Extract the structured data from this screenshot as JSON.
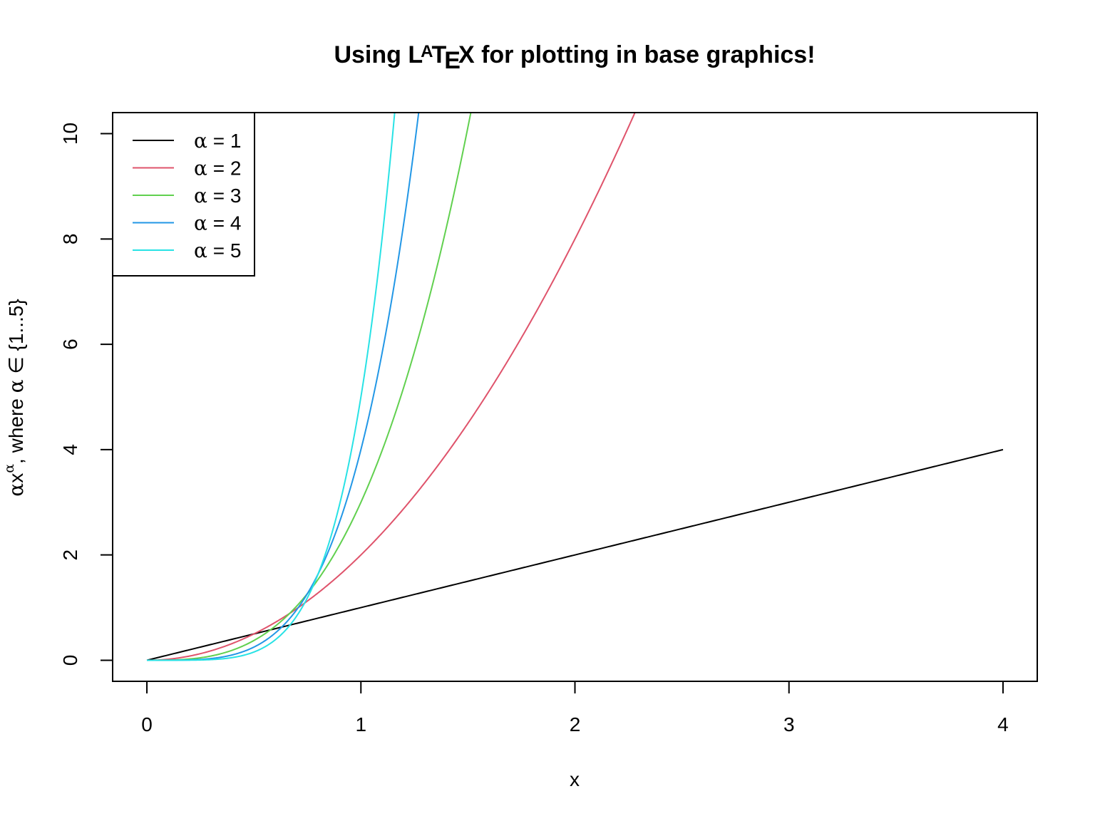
{
  "chart_data": {
    "type": "line",
    "title": {
      "prefix": "Using ",
      "latex_L": "L",
      "latex_A": "A",
      "latex_T": "T",
      "latex_E": "E",
      "latex_X": "X",
      "suffix": " for plotting in base graphics!"
    },
    "xlabel": "x",
    "ylabel": {
      "alpha": "α",
      "x": "x",
      "sup": "α",
      "rest": ", where ",
      "alpha2": "α",
      "elem": " ∈ ",
      "set": "{1...5}"
    },
    "xlim": [
      -0.16,
      4.16
    ],
    "ylim": [
      -0.4,
      10.4
    ],
    "xticks": [
      0,
      1,
      2,
      3,
      4
    ],
    "yticks": [
      0,
      2,
      4,
      6,
      8,
      10
    ],
    "x_range": [
      0,
      4
    ],
    "series": [
      {
        "name": "α = 1",
        "alpha": 1,
        "color": "#000000",
        "formula": "alpha * x^alpha"
      },
      {
        "name": "α = 2",
        "alpha": 2,
        "color": "#DF536B",
        "formula": "alpha * x^alpha"
      },
      {
        "name": "α = 3",
        "alpha": 3,
        "color": "#61D04F",
        "formula": "alpha * x^alpha"
      },
      {
        "name": "α = 4",
        "alpha": 4,
        "color": "#2297E6",
        "formula": "alpha * x^alpha"
      },
      {
        "name": "α = 5",
        "alpha": 5,
        "color": "#28E2E5",
        "formula": "alpha * x^alpha"
      }
    ],
    "legend": {
      "position": "top-left",
      "entries": [
        {
          "symbol": "α",
          "eq": " = 1"
        },
        {
          "symbol": "α",
          "eq": " = 2"
        },
        {
          "symbol": "α",
          "eq": " = 3"
        },
        {
          "symbol": "α",
          "eq": " = 4"
        },
        {
          "symbol": "α",
          "eq": " = 5"
        }
      ]
    },
    "grid": false
  }
}
